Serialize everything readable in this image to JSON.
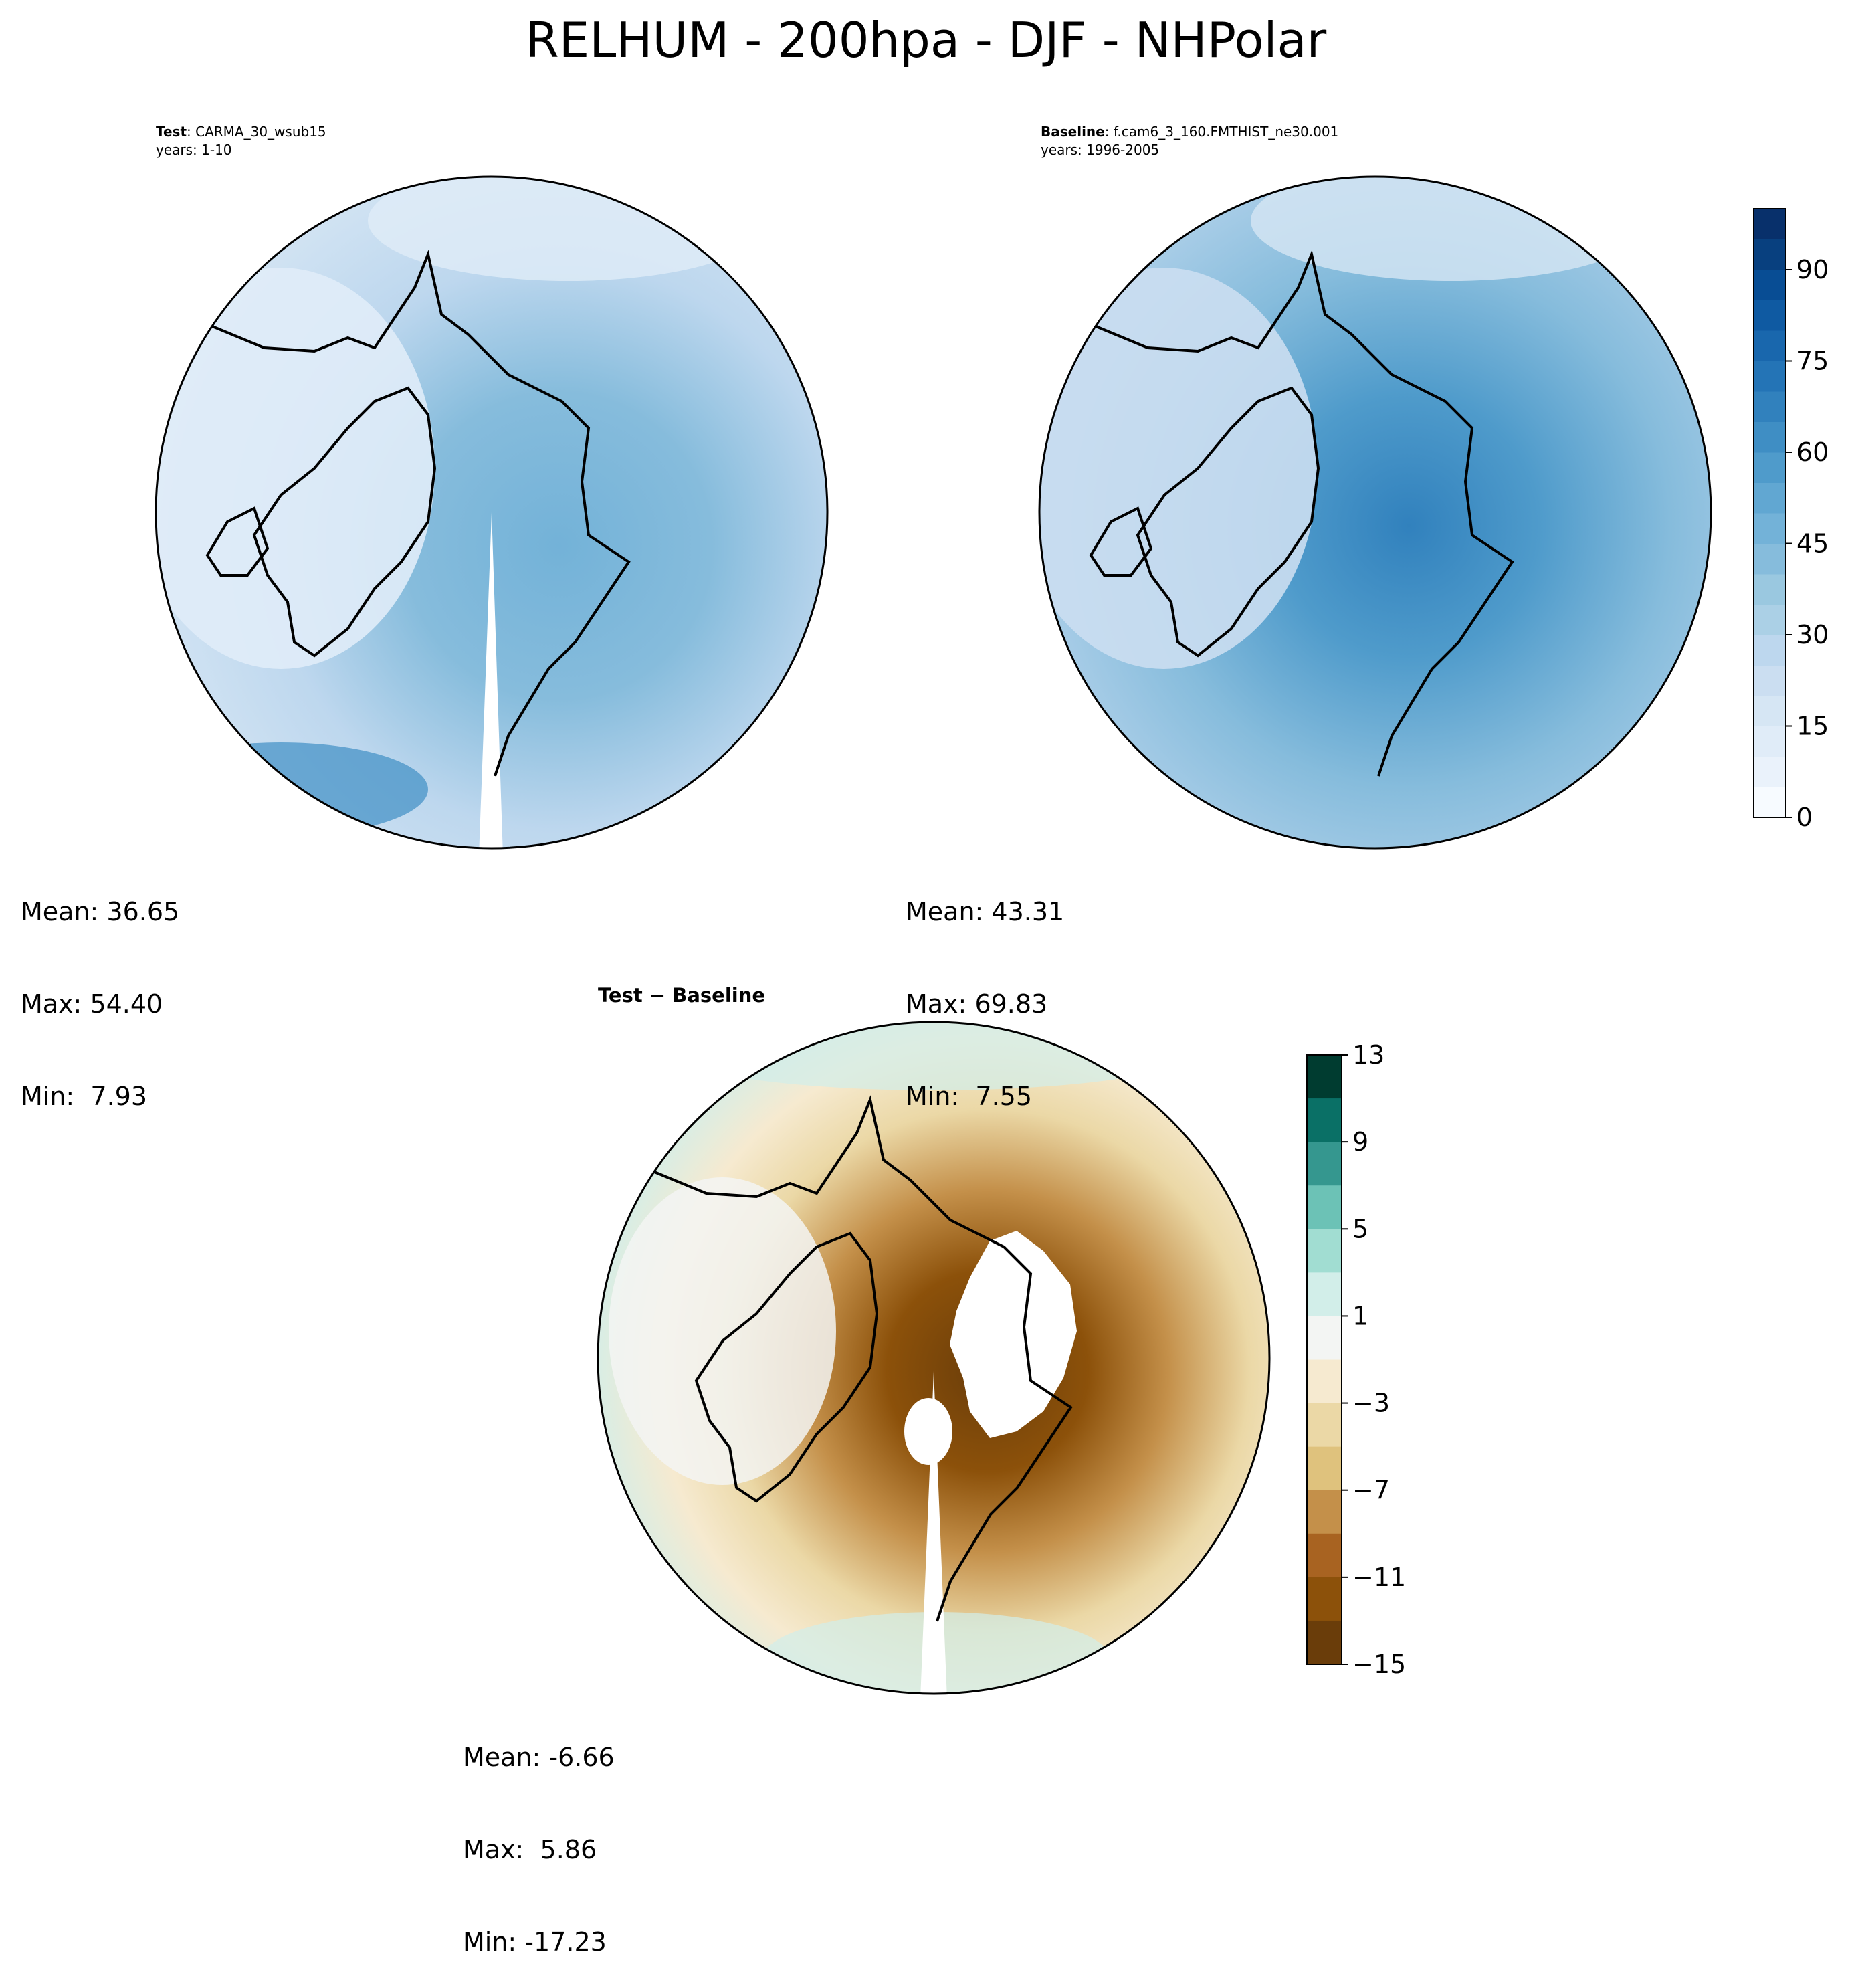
{
  "title": "RELHUM - 200hpa - DJF - NHPolar",
  "panels": {
    "test": {
      "label_bold": "Test",
      "label_text": ": CARMA_30_wsub15",
      "years": "years: 1-10",
      "mean": "Mean: 36.65",
      "max": "Max: 54.40",
      "min": "Min:  7.93"
    },
    "baseline": {
      "label_bold": "Baseline",
      "label_text": ": f.cam6_3_160.FMTHIST_ne30.001",
      "years": "years: 1996-2005",
      "mean": "Mean: 43.31",
      "max": "Max: 69.83",
      "min": "Min:  7.55"
    },
    "diff": {
      "label": "Test − Baseline",
      "mean": "Mean: -6.66",
      "max": "Max:  5.86",
      "min": "Min: -17.23"
    }
  },
  "colorbars": {
    "relhum": {
      "ticks": [
        "0",
        "15",
        "30",
        "45",
        "60",
        "75",
        "90"
      ],
      "colors": [
        "#f7fbff",
        "#eaf2fb",
        "#e0ecf8",
        "#d6e6f4",
        "#cbdef1",
        "#bdd7ee",
        "#abd0e6",
        "#9ac8e0",
        "#86bcdc",
        "#73b2d8",
        "#61a7d2",
        "#4f9bcb",
        "#3f8ec4",
        "#3181bd",
        "#2474b6",
        "#1967ad",
        "#0f5aa2",
        "#084d94",
        "#08407f",
        "#08306b"
      ]
    },
    "diff": {
      "ticks": [
        "13",
        "9",
        "5",
        "1",
        "−3",
        "−7",
        "−11",
        "−15"
      ],
      "colors": [
        "#003c30",
        "#0a7066",
        "#35978f",
        "#6cc2b6",
        "#a1ddd2",
        "#d2eee9",
        "#f3f5f3",
        "#f6ead0",
        "#ebd8a6",
        "#dfc27d",
        "#c4904a",
        "#a86321",
        "#8c510a",
        "#6a3d0a"
      ]
    }
  }
}
